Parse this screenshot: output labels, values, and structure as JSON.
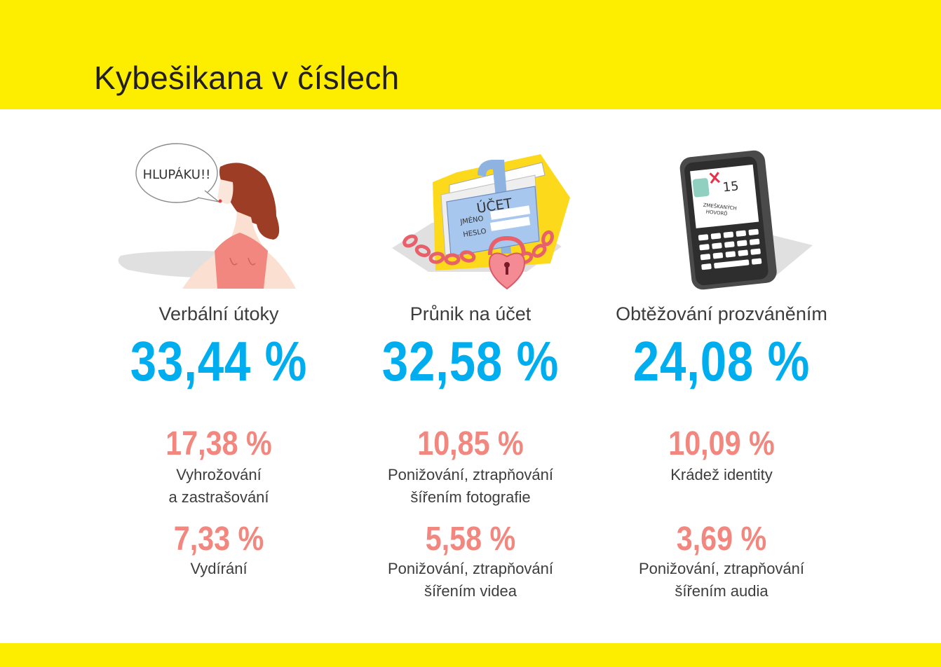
{
  "title": "Kybešikana v číslech",
  "colors": {
    "band": "#fdee00",
    "primary": "#00aeef",
    "secondary": "#f1877e",
    "text": "#3d3d3d"
  },
  "columns": [
    {
      "icon": "woman-speech-icon",
      "speech": "HLUPÁKU!!",
      "label": "Verbální útoky",
      "value": "33,44 %",
      "items": [
        {
          "value": "17,38 %",
          "line1": "Vyhrožování",
          "line2": "a zastrašování"
        },
        {
          "value": "7,33 %",
          "line1": "Vydírání",
          "line2": ""
        }
      ]
    },
    {
      "icon": "locked-folder-icon",
      "account": "ÚČET",
      "name_field": "JMÉNO",
      "password_field": "HESLO",
      "label": "Průnik na účet",
      "value": "32,58 %",
      "items": [
        {
          "value": "10,85 %",
          "line1": "Ponižování, ztrapňování",
          "line2": "šířením fotografie"
        },
        {
          "value": "5,58 %",
          "line1": "Ponižování, ztrapňování",
          "line2": "šířením videa"
        }
      ]
    },
    {
      "icon": "phone-missed-calls-icon",
      "missed_count": "15",
      "missed_line1": "ZMEŠKANÝCH",
      "missed_line2": "HOVORŮ",
      "label": "Obtěžování prozváněním",
      "value": "24,08 %",
      "items": [
        {
          "value": "10,09 %",
          "line1": "Krádež identity",
          "line2": ""
        },
        {
          "value": "3,69 %",
          "line1": "Ponižování, ztrapňování",
          "line2": "šířením audia"
        }
      ]
    }
  ]
}
